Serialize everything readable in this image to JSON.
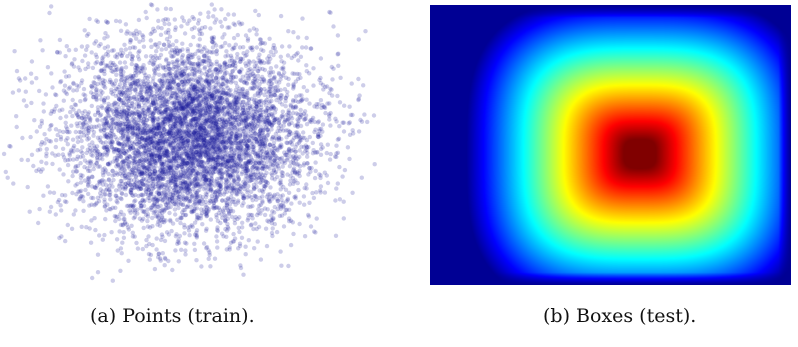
{
  "figure": {
    "panels": [
      {
        "caption": "(a) Points (train).",
        "type": "scatter",
        "point_color": "#1a1a99",
        "point_opacity": 0.22
      },
      {
        "caption": "(b) Boxes (test).",
        "type": "heatmap",
        "colormap": "jet",
        "peak": "center-right, dark red"
      }
    ]
  },
  "chart_data": [
    {
      "type": "scatter",
      "series": [
        {
          "points": "approx. 6000 samples from a 2D Gaussian blob, densest at the center"
        }
      ],
      "xlabel": "",
      "ylabel": "",
      "axes": "hidden",
      "grid": false
    },
    {
      "type": "heatmap",
      "colormap": "jet",
      "xlabel": "",
      "ylabel": "",
      "axes": "hidden",
      "description": "rounded-rectangle high-value region with maximum (dark red) right of center; values fall off to blue at the borders"
    }
  ]
}
